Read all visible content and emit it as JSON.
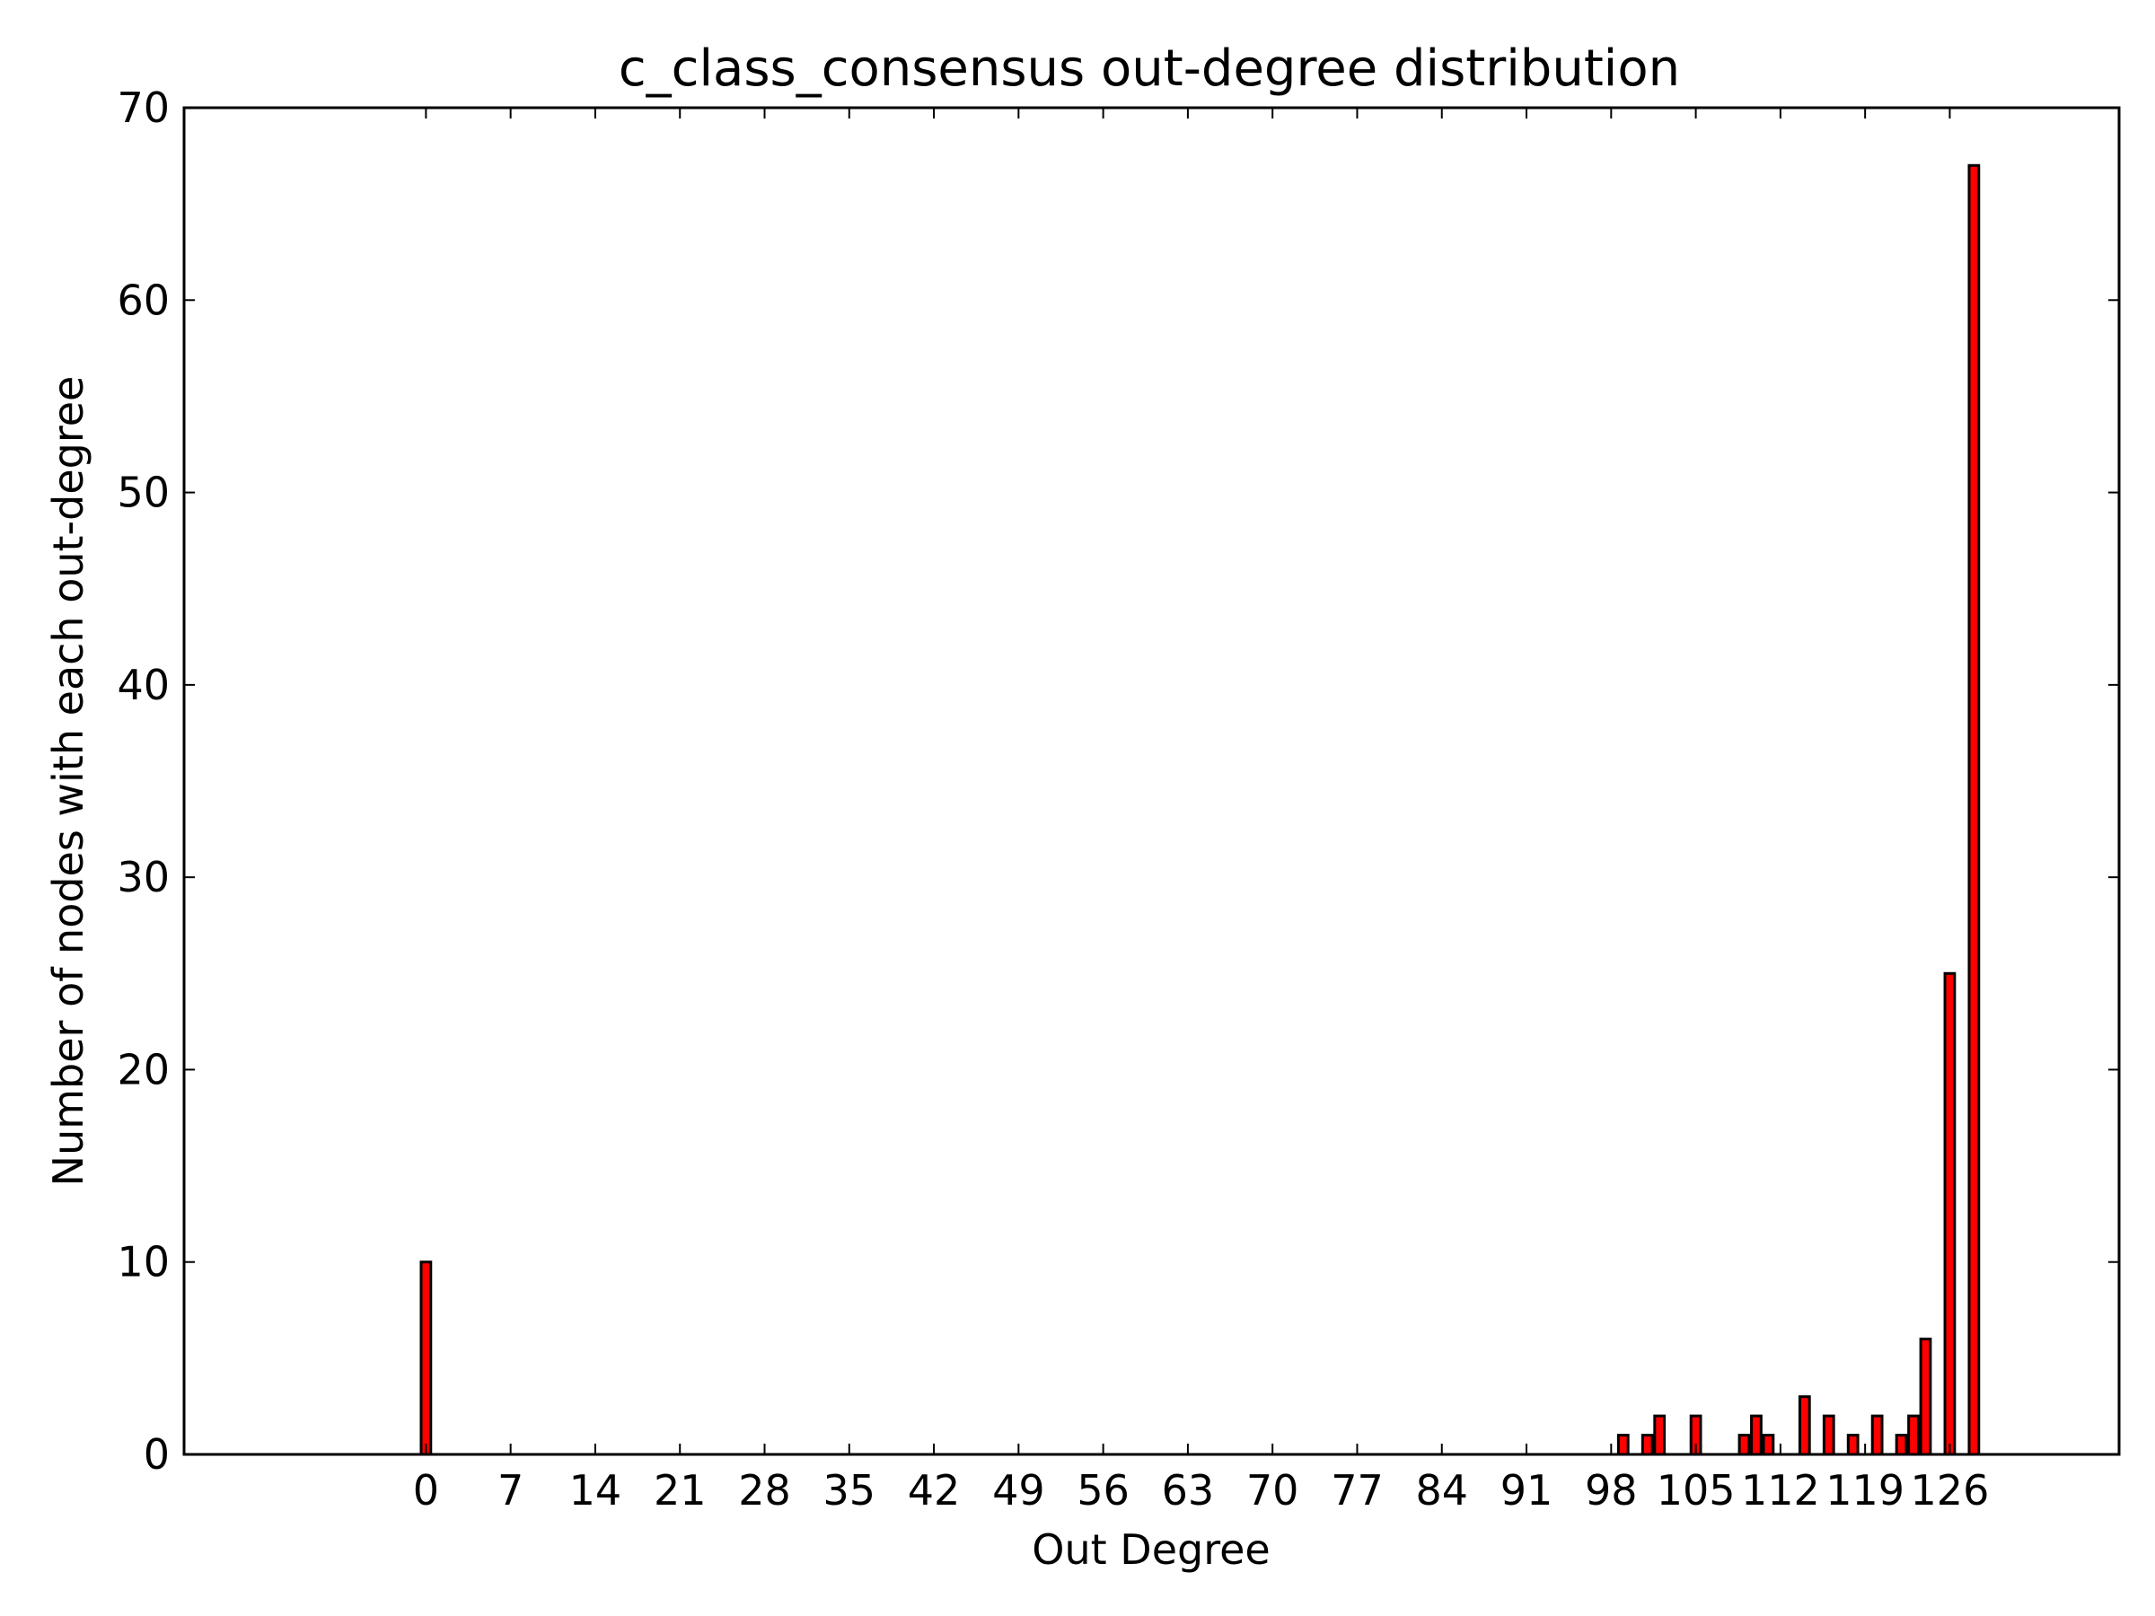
{
  "chart_data": {
    "type": "bar",
    "title": "c_class_consensus out-degree distribution",
    "xlabel": "Out Degree",
    "ylabel": "Number of nodes with each out-degree",
    "xlim": [
      -20,
      140
    ],
    "ylim": [
      0,
      70
    ],
    "xticks": [
      0,
      7,
      14,
      21,
      28,
      35,
      42,
      49,
      56,
      63,
      70,
      77,
      84,
      91,
      98,
      105,
      112,
      119,
      126
    ],
    "xtick_labels": [
      "0",
      "7",
      "14",
      "21",
      "28",
      "35",
      "42",
      "49",
      "56",
      "63",
      "70",
      "77",
      "84",
      "91",
      "98",
      "105",
      "112",
      "119",
      "126"
    ],
    "yticks": [
      0,
      10,
      20,
      30,
      40,
      50,
      60,
      70
    ],
    "ytick_labels": [
      "0",
      "10",
      "20",
      "30",
      "40",
      "50",
      "60",
      "70"
    ],
    "bar_width": 0.8,
    "grid": false,
    "bar_color": "#ff0000",
    "edge_color": "#000000",
    "x": [
      0,
      99,
      101,
      102,
      105,
      109,
      110,
      111,
      114,
      116,
      118,
      120,
      122,
      123,
      124,
      126,
      128
    ],
    "values": [
      10,
      1,
      1,
      2,
      2,
      1,
      2,
      1,
      3,
      2,
      1,
      2,
      1,
      2,
      6,
      25,
      67
    ]
  }
}
